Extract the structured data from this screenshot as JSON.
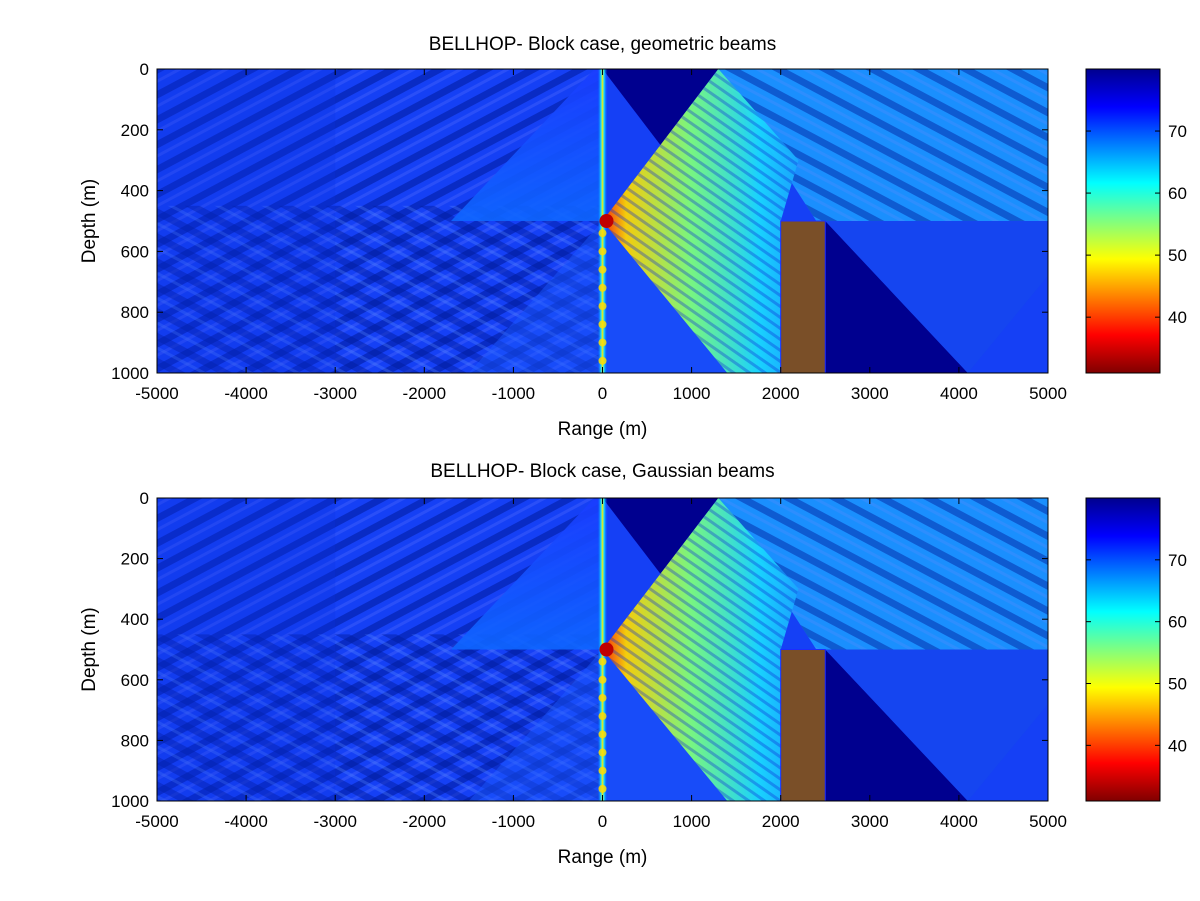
{
  "chart_data": [
    {
      "type": "heatmap",
      "title": "BELLHOP- Block case, geometric beams",
      "xlabel": "Range (m)",
      "ylabel": "Depth (m)",
      "xlim": [
        -5000,
        5000
      ],
      "ylim": [
        0,
        1000
      ],
      "y_reversed": true,
      "x_ticks": [
        -5000,
        -4000,
        -3000,
        -2000,
        -1000,
        0,
        1000,
        2000,
        3000,
        4000,
        5000
      ],
      "y_ticks": [
        0,
        200,
        400,
        600,
        800,
        1000
      ],
      "colorbar": {
        "colormap": "jet-reversed",
        "range": [
          31,
          80
        ],
        "ticks": [
          40,
          50,
          60,
          70
        ]
      },
      "source": {
        "range": 0,
        "depth": 500
      },
      "block": {
        "range": [
          2000,
          2500
        ],
        "depth": [
          500,
          1000
        ],
        "color": "#7a4f28"
      },
      "grid": false,
      "legend": "none"
    },
    {
      "type": "heatmap",
      "title": "BELLHOP- Block case, Gaussian beams",
      "xlabel": "Range (m)",
      "ylabel": "Depth (m)",
      "xlim": [
        -5000,
        5000
      ],
      "ylim": [
        0,
        1000
      ],
      "y_reversed": true,
      "x_ticks": [
        -5000,
        -4000,
        -3000,
        -2000,
        -1000,
        0,
        1000,
        2000,
        3000,
        4000,
        5000
      ],
      "y_ticks": [
        0,
        200,
        400,
        600,
        800,
        1000
      ],
      "colorbar": {
        "colormap": "jet-reversed",
        "range": [
          31,
          80
        ],
        "ticks": [
          40,
          50,
          60,
          70
        ]
      },
      "source": {
        "range": 0,
        "depth": 500
      },
      "block": {
        "range": [
          2000,
          2500
        ],
        "depth": [
          500,
          1000
        ],
        "color": "#7a4f28"
      },
      "grid": false,
      "legend": "none"
    }
  ]
}
